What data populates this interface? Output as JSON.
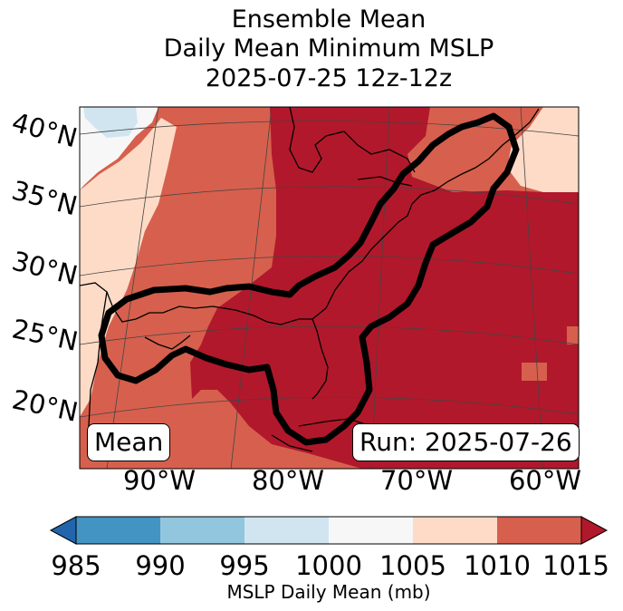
{
  "title": {
    "line1": "Ensemble Mean",
    "line2": "Daily Mean Minimum MSLP",
    "line3": "2025-07-25 12z-12z"
  },
  "map": {
    "latitude_labels": [
      "40°N",
      "35°N",
      "30°N",
      "25°N",
      "20°N"
    ],
    "longitude_labels": [
      "90°W",
      "80°W",
      "70°W",
      "60°W"
    ],
    "mean_box": "Mean",
    "run_box": "Run: 2025-07-26"
  },
  "colorbar": {
    "ticks": [
      "985",
      "990",
      "995",
      "1000",
      "1005",
      "1010",
      "1015"
    ],
    "label": "MSLP Daily Mean (mb)",
    "colors": {
      "below": "#2166ac",
      "985-990": "#4393c3",
      "990-995": "#92c5de",
      "995-1000": "#d1e5f0",
      "1000-1005": "#f7f7f7",
      "1005-1010": "#fddbc7",
      "1010-1015": "#d6604d",
      "above": "#b2182b"
    }
  }
}
